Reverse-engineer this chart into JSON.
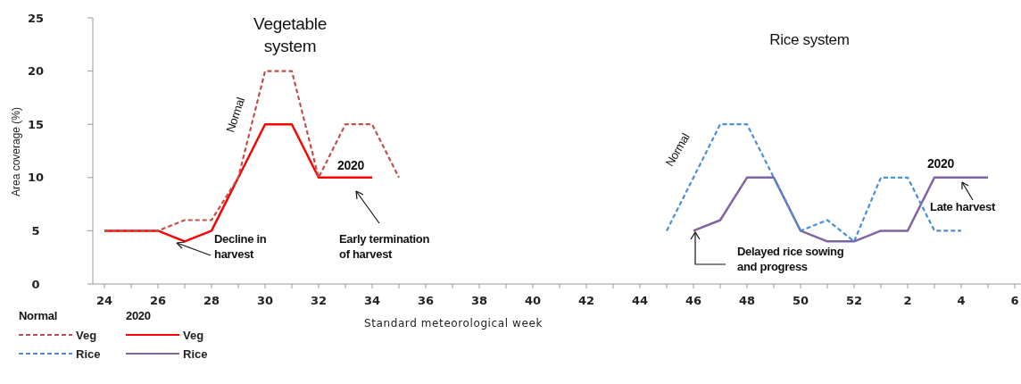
{
  "chart_data": {
    "type": "line",
    "xlabel": "Standard meteorological week",
    "ylabel": "Area coverage (%)",
    "categories": [
      "24",
      null,
      "26",
      null,
      "28",
      null,
      "30",
      null,
      "32",
      null,
      "34",
      null,
      "36",
      null,
      "38",
      null,
      "40",
      null,
      "42",
      null,
      "44",
      null,
      "46",
      null,
      "48",
      null,
      "50",
      null,
      "52",
      null,
      "2",
      null,
      "4",
      null,
      "6"
    ],
    "ylim": [
      0,
      25
    ],
    "yticks": [
      0,
      5,
      10,
      15,
      20,
      25
    ],
    "grid": false,
    "legend": "bottom left",
    "marker": "none",
    "series": [
      {
        "name": "Veg",
        "color": "#c0504d",
        "line_style": "dashed",
        "values": [
          5,
          5,
          5,
          6,
          6,
          10,
          20,
          20,
          10,
          15,
          15,
          10,
          null,
          null,
          null,
          null,
          null,
          null,
          null,
          null,
          null,
          null,
          null,
          null,
          null,
          null,
          null,
          null,
          null,
          null,
          null,
          null,
          null,
          null,
          null
        ]
      },
      {
        "name": "Rice",
        "color": "#4a90d9",
        "line_style": "dashed",
        "values": [
          null,
          null,
          null,
          null,
          null,
          null,
          null,
          null,
          null,
          null,
          null,
          null,
          null,
          null,
          null,
          null,
          null,
          null,
          null,
          null,
          null,
          5,
          10,
          15,
          15,
          10,
          5,
          6,
          4,
          10,
          10,
          5,
          5,
          null,
          null
        ]
      },
      {
        "name": "Veg",
        "color": "#ff0000",
        "line_style": "solid",
        "values": [
          5,
          5,
          5,
          4,
          5,
          10,
          15,
          15,
          10,
          10,
          10,
          null,
          null,
          null,
          null,
          null,
          null,
          null,
          null,
          null,
          null,
          null,
          null,
          null,
          null,
          null,
          null,
          null,
          null,
          null,
          null,
          null,
          null,
          null,
          null
        ]
      },
      {
        "name": "Rice",
        "color": "#8064a2",
        "line_style": "solid",
        "values": [
          null,
          null,
          null,
          null,
          null,
          null,
          null,
          null,
          null,
          null,
          null,
          null,
          null,
          null,
          null,
          null,
          null,
          null,
          null,
          null,
          null,
          null,
          5,
          6,
          10,
          10,
          5,
          4,
          4,
          5,
          5,
          10,
          10,
          10,
          null
        ]
      }
    ],
    "annotations": [
      "Normal",
      "2020",
      "Vegetable system",
      "Rice system",
      "Normal",
      "Normal",
      "2020",
      "2020",
      "Decline in harvest",
      "Early termination of harvest",
      "Delayed rice sowing and progress",
      "Late harvest"
    ]
  }
}
